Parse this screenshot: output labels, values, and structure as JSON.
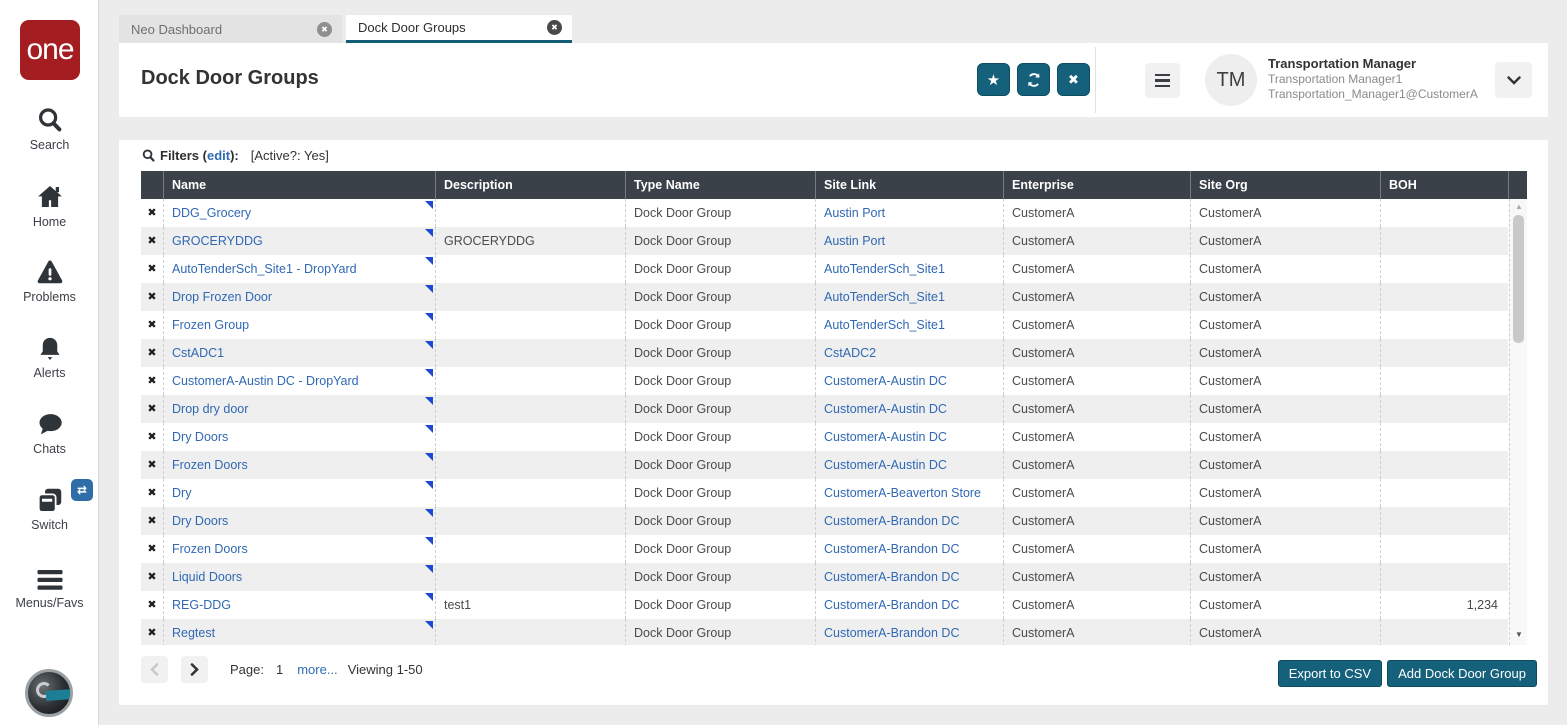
{
  "sidebar": {
    "logo_text": "one",
    "items": [
      {
        "label": "Search",
        "icon": "search-icon"
      },
      {
        "label": "Home",
        "icon": "home-icon"
      },
      {
        "label": "Problems",
        "icon": "warning-icon"
      },
      {
        "label": "Alerts",
        "icon": "bell-icon"
      },
      {
        "label": "Chats",
        "icon": "chat-icon"
      },
      {
        "label": "Switch",
        "icon": "switch-icon"
      },
      {
        "label": "Menus/Favs",
        "icon": "menu-icon"
      }
    ],
    "switch_badge_icon": "⇄"
  },
  "tabs": [
    {
      "label": "Neo Dashboard",
      "active": false
    },
    {
      "label": "Dock Door Groups",
      "active": true
    }
  ],
  "header": {
    "title": "Dock Door Groups",
    "user": {
      "initials": "TM",
      "role": "Transportation Manager",
      "name": "Transportation Manager1",
      "email": "Transportation_Manager1@CustomerA"
    }
  },
  "filters": {
    "prefix": "Filters (",
    "edit_link": "edit",
    "suffix": "):",
    "applied": "[Active?: Yes]"
  },
  "table": {
    "columns": [
      "Name",
      "Description",
      "Type Name",
      "Site Link",
      "Enterprise",
      "Site Org",
      "BOH"
    ],
    "rows": [
      {
        "name": "DDG_Grocery",
        "description": "",
        "type_name": "Dock Door Group",
        "site_link": "Austin Port",
        "enterprise": "CustomerA",
        "site_org": "CustomerA",
        "boh": ""
      },
      {
        "name": "GROCERYDDG",
        "description": "GROCERYDDG",
        "type_name": "Dock Door Group",
        "site_link": "Austin Port",
        "enterprise": "CustomerA",
        "site_org": "CustomerA",
        "boh": ""
      },
      {
        "name": "AutoTenderSch_Site1 - DropYard",
        "description": "",
        "type_name": "Dock Door Group",
        "site_link": "AutoTenderSch_Site1",
        "enterprise": "CustomerA",
        "site_org": "CustomerA",
        "boh": ""
      },
      {
        "name": "Drop Frozen Door",
        "description": "",
        "type_name": "Dock Door Group",
        "site_link": "AutoTenderSch_Site1",
        "enterprise": "CustomerA",
        "site_org": "CustomerA",
        "boh": ""
      },
      {
        "name": "Frozen Group",
        "description": "",
        "type_name": "Dock Door Group",
        "site_link": "AutoTenderSch_Site1",
        "enterprise": "CustomerA",
        "site_org": "CustomerA",
        "boh": ""
      },
      {
        "name": "CstADC1",
        "description": "",
        "type_name": "Dock Door Group",
        "site_link": "CstADC2",
        "enterprise": "CustomerA",
        "site_org": "CustomerA",
        "boh": ""
      },
      {
        "name": "CustomerA-Austin DC - DropYard",
        "description": "",
        "type_name": "Dock Door Group",
        "site_link": "CustomerA-Austin DC",
        "enterprise": "CustomerA",
        "site_org": "CustomerA",
        "boh": ""
      },
      {
        "name": "Drop dry door",
        "description": "",
        "type_name": "Dock Door Group",
        "site_link": "CustomerA-Austin DC",
        "enterprise": "CustomerA",
        "site_org": "CustomerA",
        "boh": ""
      },
      {
        "name": "Dry Doors",
        "description": "",
        "type_name": "Dock Door Group",
        "site_link": "CustomerA-Austin DC",
        "enterprise": "CustomerA",
        "site_org": "CustomerA",
        "boh": ""
      },
      {
        "name": "Frozen Doors",
        "description": "",
        "type_name": "Dock Door Group",
        "site_link": "CustomerA-Austin DC",
        "enterprise": "CustomerA",
        "site_org": "CustomerA",
        "boh": ""
      },
      {
        "name": "Dry",
        "description": "",
        "type_name": "Dock Door Group",
        "site_link": "CustomerA-Beaverton Store",
        "enterprise": "CustomerA",
        "site_org": "CustomerA",
        "boh": ""
      },
      {
        "name": "Dry Doors",
        "description": "",
        "type_name": "Dock Door Group",
        "site_link": "CustomerA-Brandon DC",
        "enterprise": "CustomerA",
        "site_org": "CustomerA",
        "boh": ""
      },
      {
        "name": "Frozen Doors",
        "description": "",
        "type_name": "Dock Door Group",
        "site_link": "CustomerA-Brandon DC",
        "enterprise": "CustomerA",
        "site_org": "CustomerA",
        "boh": ""
      },
      {
        "name": "Liquid Doors",
        "description": "",
        "type_name": "Dock Door Group",
        "site_link": "CustomerA-Brandon DC",
        "enterprise": "CustomerA",
        "site_org": "CustomerA",
        "boh": ""
      },
      {
        "name": "REG-DDG",
        "description": "test1",
        "type_name": "Dock Door Group",
        "site_link": "CustomerA-Brandon DC",
        "enterprise": "CustomerA",
        "site_org": "CustomerA",
        "boh": "1,234"
      },
      {
        "name": "Regtest",
        "description": "",
        "type_name": "Dock Door Group",
        "site_link": "CustomerA-Brandon DC",
        "enterprise": "CustomerA",
        "site_org": "CustomerA",
        "boh": ""
      }
    ]
  },
  "pagination": {
    "page_label": "Page:",
    "page": "1",
    "more_link": "more...",
    "viewing": "Viewing 1-50"
  },
  "actions": {
    "export_csv": "Export to CSV",
    "add_group": "Add Dock Door Group"
  },
  "icons": {
    "delete": "✖",
    "star": "★",
    "close": "✖",
    "scroll_up": "▲",
    "scroll_down": "▼"
  },
  "colors": {
    "accent_teal": "#15607a",
    "link_blue": "#3068b3",
    "table_header": "#3a4149",
    "logo_red": "#a31d21",
    "corner_blue": "#1d48cf"
  }
}
